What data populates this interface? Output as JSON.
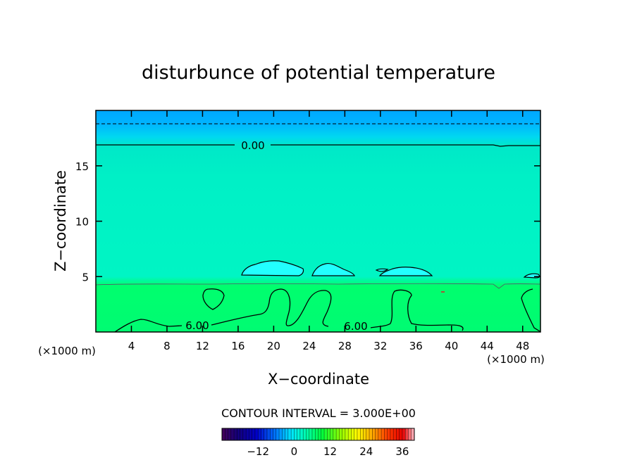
{
  "chart_data": {
    "type": "heatmap",
    "title": "disturbunce of potential temperature",
    "xlabel": "X−coordinate",
    "ylabel": "Z−coordinate",
    "x_unit_left": "(×1000 m)",
    "x_unit_right": "(×1000 m)",
    "xlim": [
      0,
      50
    ],
    "ylim": [
      0,
      20
    ],
    "x_ticks": [
      4,
      8,
      12,
      16,
      20,
      24,
      28,
      32,
      36,
      40,
      44,
      48
    ],
    "y_ticks": [
      5,
      10,
      15
    ],
    "contour_interval_text": "CONTOUR INTERVAL = 3.000E+00",
    "contour_labels": [
      {
        "text": "0.00",
        "x": 17.5,
        "z": 16.8
      },
      {
        "text": "6.00",
        "x": 11.3,
        "z": 0.6
      },
      {
        "text": "6.00",
        "x": 29.2,
        "z": 0.5
      }
    ],
    "colorbar": {
      "range": [
        -24,
        40
      ],
      "ticks": [
        -12,
        0,
        12,
        24,
        36
      ],
      "tick_labels": [
        "−12",
        "0",
        "12",
        "24",
        "36"
      ]
    }
  },
  "colors": {
    "top_band": "#00aaff",
    "upper_layer": "#00ddcc",
    "mid_layer": "#00f0c8",
    "lower_layer": "#00ff6e",
    "warm_blob": "#00ffff"
  }
}
